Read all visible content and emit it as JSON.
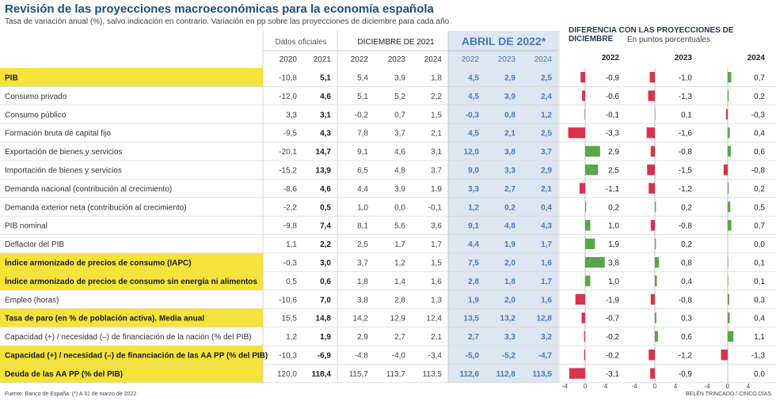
{
  "title": "Revisión de las proyecciones macroeconómicas para la economía española",
  "subtitle": "Tasa de variación anual (%), salvo indicación en contrario. Variación en pp sobre las proyecciones de diciembre para cada año",
  "headers": {
    "datos_oficiales": "Datos oficiales",
    "diciembre": "DICIEMBRE DE 2021",
    "abril": "ABRIL DE 2022*",
    "diferencia": "DIFERENCIA CON LAS PROYECCIONES DE DICIEMBRE",
    "diferencia_sub": "En puntos porcentuales",
    "years": [
      "2020",
      "2021",
      "2022",
      "2023",
      "2024",
      "2022",
      "2023",
      "2024"
    ],
    "diff_years": [
      "2022",
      "2023",
      "2024"
    ]
  },
  "axis_ticks": [
    "-4",
    "0",
    "4"
  ],
  "source": "Fuente: Banco de España. (*) A 31 de marzo de 2022",
  "credit": "BELÉN TRINCADO / CINCO DÍAS",
  "colors": {
    "highlight": "#f5e33b",
    "positive": "#5aa64a",
    "negative": "#d9334c",
    "abril_bg": "#dde6f3",
    "abril_text": "#4a78b8",
    "title": "#1f4e7a"
  },
  "chart_data": {
    "type": "table",
    "columns": [
      "2020",
      "2021",
      "Dic 2022",
      "Dic 2023",
      "Dic 2024",
      "Abr 2022",
      "Abr 2023",
      "Abr 2024",
      "Dif 2022",
      "Dif 2023",
      "Dif 2024"
    ],
    "rows": [
      {
        "label": "PIB",
        "hl": true,
        "v": [
          "-10,8",
          "5,1",
          "5,4",
          "3,9",
          "1,8",
          "4,5",
          "2,9",
          "2,5"
        ],
        "d": [
          -0.9,
          -1.0,
          0.7
        ],
        "dt": [
          "-0,9",
          "-1,0",
          "0,7"
        ]
      },
      {
        "label": "Consumo privado",
        "hl": false,
        "v": [
          "-12,0",
          "4,6",
          "5,1",
          "5,2",
          "2,2",
          "4,5",
          "3,9",
          "2,4"
        ],
        "d": [
          -0.6,
          -1.3,
          0.2
        ],
        "dt": [
          "-0,6",
          "-1,3",
          "0,2"
        ]
      },
      {
        "label": "Consumo público",
        "hl": false,
        "v": [
          "3,3",
          "3,1",
          "-0,2",
          "0,7",
          "1,5",
          "-0,3",
          "0,8",
          "1,2"
        ],
        "d": [
          -0.1,
          0.1,
          -0.3
        ],
        "dt": [
          "-0,1",
          "0,1",
          "-0,3"
        ]
      },
      {
        "label": "Formación bruta de capital fijo",
        "hl": false,
        "v": [
          "-9,5",
          "4,3",
          "7,8",
          "3,7",
          "2,1",
          "4,5",
          "2,1",
          "2,5"
        ],
        "d": [
          -3.3,
          -1.6,
          0.4
        ],
        "dt": [
          "-3,3",
          "-1,6",
          "0,4"
        ]
      },
      {
        "label": "Exportación de bienes y servicios",
        "hl": false,
        "v": [
          "-20,1",
          "14,7",
          "9,1",
          "4,6",
          "3,1",
          "12,0",
          "3,8",
          "3,7"
        ],
        "d": [
          2.9,
          -0.8,
          0.6
        ],
        "dt": [
          "2,9",
          "-0,8",
          "0,6"
        ]
      },
      {
        "label": "Importación de bienes y servicios",
        "hl": false,
        "v": [
          "-15,2",
          "13,9",
          "6,5",
          "4,8",
          "3,7",
          "9,0",
          "3,3",
          "2,9"
        ],
        "d": [
          2.5,
          -1.5,
          -0.8
        ],
        "dt": [
          "2,5",
          "-1,5",
          "-0,8"
        ]
      },
      {
        "label": "Demanda nacional (contribución al crecimiento)",
        "hl": false,
        "v": [
          "-8,6",
          "4,6",
          "4,4",
          "3,9",
          "1,9",
          "3,3",
          "2,7",
          "2,1"
        ],
        "d": [
          -1.1,
          -1.2,
          0.2
        ],
        "dt": [
          "-1,1",
          "-1,2",
          "0,2"
        ]
      },
      {
        "label": "Demanda exterior neta (contribución al crecimiento)",
        "hl": false,
        "v": [
          "-2,2",
          "0,5",
          "1,0",
          "0,0",
          "-0,1",
          "1,2",
          "0,2",
          "0,4"
        ],
        "d": [
          0.2,
          0.2,
          0.5
        ],
        "dt": [
          "0,2",
          "0,2",
          "0,5"
        ]
      },
      {
        "label": "PIB nominal",
        "hl": false,
        "v": [
          "-9,8",
          "7,4",
          "8,1",
          "5,6",
          "3,6",
          "9,1",
          "4,8",
          "4,3"
        ],
        "d": [
          1.0,
          -0.8,
          0.7
        ],
        "dt": [
          "1,0",
          "-0,8",
          "0,7"
        ]
      },
      {
        "label": "Deflactor del PIB",
        "hl": false,
        "v": [
          "1,1",
          "2,2",
          "2,5",
          "1,7",
          "1,7",
          "4,4",
          "1,9",
          "1,7"
        ],
        "d": [
          1.9,
          0.2,
          0.0
        ],
        "dt": [
          "1,9",
          "0,2",
          "0,0"
        ]
      },
      {
        "label": "Índice armonizado de precios de consumo (IAPC)",
        "hl": true,
        "v": [
          "-0,3",
          "3,0",
          "3,7",
          "1,2",
          "1,5",
          "7,5",
          "2,0",
          "1,6"
        ],
        "d": [
          3.8,
          0.8,
          0.1
        ],
        "dt": [
          "3,8",
          "0,8",
          "0,1"
        ]
      },
      {
        "label": "Índice armonizado de precios de consumo sin energía ni alimentos",
        "hl": true,
        "v": [
          "0,5",
          "0,6",
          "1,8",
          "1,4",
          "1,6",
          "2,8",
          "1,8",
          "1,7"
        ],
        "d": [
          1.0,
          0.4,
          0.1
        ],
        "dt": [
          "1,0",
          "0,4",
          "0,1"
        ]
      },
      {
        "label": "Empleo (horas)",
        "hl": false,
        "v": [
          "-10,6",
          "7,0",
          "3,8",
          "2,8",
          "1,3",
          "1,9",
          "2,0",
          "1,6"
        ],
        "d": [
          -1.9,
          -0.8,
          0.3
        ],
        "dt": [
          "-1,9",
          "-0,8",
          "0,3"
        ]
      },
      {
        "label": "Tasa de paro (en % de población activa). Media anual",
        "hl": true,
        "v": [
          "15,5",
          "14,8",
          "14,2",
          "12,9",
          "12,4",
          "13,5",
          "13,2",
          "12,8"
        ],
        "d": [
          -0.7,
          0.3,
          0.4
        ],
        "dt": [
          "-0,7",
          "0,3",
          "0,4"
        ]
      },
      {
        "label": "Capacidad (+) / necesidad (–) de financiación de la nación (% del PIB)",
        "hl": false,
        "v": [
          "1,2",
          "1,9",
          "2,9",
          "2,7",
          "2,1",
          "2,7",
          "3,3",
          "3,2"
        ],
        "d": [
          -0.2,
          0.6,
          1.1
        ],
        "dt": [
          "-0,2",
          "0,6",
          "1,1"
        ]
      },
      {
        "label": "Capacidad (+) / necesidad (–) de financiación de las AA PP (% del PIB)",
        "hl": true,
        "v": [
          "-10,3",
          "-6,9",
          "-4,8",
          "-4,0",
          "-3,4",
          "-5,0",
          "-5,2",
          "-4,7"
        ],
        "d": [
          -0.2,
          -1.2,
          -1.3
        ],
        "dt": [
          "-0,2",
          "-1,2",
          "-1,3"
        ]
      },
      {
        "label": "Deuda de las AA PP (% del PIB)",
        "hl": true,
        "v": [
          "120,0",
          "118,4",
          "115,7",
          "113,7",
          "113,5",
          "112,6",
          "112,8",
          "113,5"
        ],
        "d": [
          -3.1,
          -0.9,
          0.0
        ],
        "dt": [
          "-3,1",
          "-0,9",
          "0,0"
        ]
      }
    ]
  }
}
